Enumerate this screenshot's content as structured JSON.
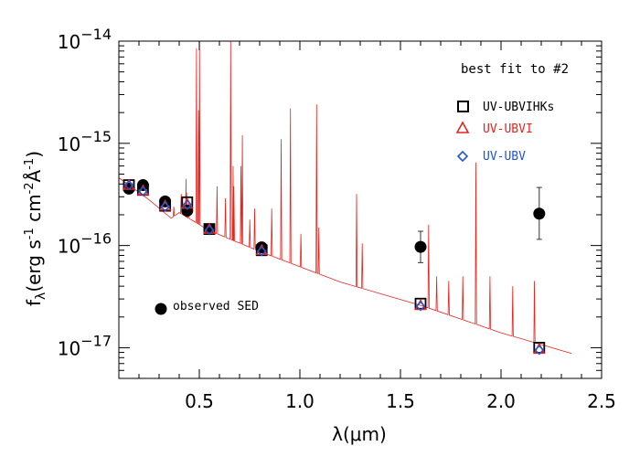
{
  "chart_data": {
    "type": "scatter",
    "xlabel_main": "λ(",
    "xlabel_mu": "μ",
    "xlabel_unit": "m)",
    "ylabel_f": "f",
    "ylabel_sub": "λ",
    "ylabel_units_a": "(erg s",
    "ylabel_exp1": "-1",
    "ylabel_units_b": " cm",
    "ylabel_exp2": "-2",
    "ylabel_angstrom": "Å",
    "ylabel_exp3": "-1",
    "ylabel_close": ")",
    "x_range": [
      0.1,
      2.5
    ],
    "y_range_log10": [
      -17.3,
      -14.0
    ],
    "y_scale": "log",
    "x_ticks": [
      {
        "value": 0.5,
        "label": "0.5"
      },
      {
        "value": 1.0,
        "label": "1.0"
      },
      {
        "value": 1.5,
        "label": "1.5"
      },
      {
        "value": 2.0,
        "label": "2.0"
      },
      {
        "value": 2.5,
        "label": "2.5"
      }
    ],
    "y_ticks": [
      {
        "exp": -14,
        "base": "10",
        "sup": "−14"
      },
      {
        "exp": -15,
        "base": "10",
        "sup": "−15"
      },
      {
        "exp": -16,
        "base": "10",
        "sup": "−16"
      },
      {
        "exp": -17,
        "base": "10",
        "sup": "−17"
      }
    ],
    "annotation": "best fit to #2",
    "observed_label": "observed SED",
    "observed": [
      {
        "x": 0.15,
        "y": 3.6e-16
      },
      {
        "x": 0.22,
        "y": 3.9e-16
      },
      {
        "x": 0.33,
        "y": 2.7e-16
      },
      {
        "x": 0.44,
        "y": 2.2e-16
      },
      {
        "x": 0.55,
        "y": 1.45e-16
      },
      {
        "x": 0.81,
        "y": 9.6e-17
      },
      {
        "x": 1.6,
        "y": 9.7e-17,
        "err_low": 6.8e-17,
        "err_high": 1.38e-16
      },
      {
        "x": 2.19,
        "y": 2.05e-16,
        "err_low": 1.15e-16,
        "err_high": 3.7e-16
      }
    ],
    "series": [
      {
        "name": "UV-UBVIHKs",
        "color": "#000000",
        "marker": "square",
        "points": [
          {
            "x": 0.15,
            "y": 3.9e-16
          },
          {
            "x": 0.22,
            "y": 3.5e-16
          },
          {
            "x": 0.33,
            "y": 2.45e-16
          },
          {
            "x": 0.44,
            "y": 2.65e-16
          },
          {
            "x": 0.55,
            "y": 1.45e-16
          },
          {
            "x": 0.81,
            "y": 9e-17
          },
          {
            "x": 1.6,
            "y": 2.7e-17
          },
          {
            "x": 2.19,
            "y": 1e-17
          }
        ]
      },
      {
        "name": "UV-UBVI",
        "color": "#e8231f",
        "marker": "triangle",
        "points": [
          {
            "x": 0.15,
            "y": 3.9e-16
          },
          {
            "x": 0.22,
            "y": 3.45e-16
          },
          {
            "x": 0.33,
            "y": 2.45e-16
          },
          {
            "x": 0.44,
            "y": 2.55e-16
          },
          {
            "x": 0.55,
            "y": 1.45e-16
          },
          {
            "x": 0.81,
            "y": 9e-17
          },
          {
            "x": 1.6,
            "y": 2.6e-17
          },
          {
            "x": 2.19,
            "y": 9.7e-18
          }
        ]
      },
      {
        "name": "UV-UBV",
        "color": "#2255d5",
        "marker": "diamond",
        "points": [
          {
            "x": 0.15,
            "y": 3.9e-16
          },
          {
            "x": 0.22,
            "y": 3.4e-16
          },
          {
            "x": 0.33,
            "y": 2.4e-16
          },
          {
            "x": 0.44,
            "y": 2.5e-16
          },
          {
            "x": 0.55,
            "y": 1.42e-16
          },
          {
            "x": 0.81,
            "y": 8.8e-17
          },
          {
            "x": 1.6,
            "y": 2.55e-17
          },
          {
            "x": 2.19,
            "y": 9.5e-18
          }
        ]
      }
    ],
    "model_spectrum": {
      "color": "#e8231f",
      "continuum": [
        {
          "x": 0.1,
          "y": 4.6e-16
        },
        {
          "x": 0.15,
          "y": 3.9e-16
        },
        {
          "x": 0.25,
          "y": 2.8e-16
        },
        {
          "x": 0.36,
          "y": 1.85e-16
        },
        {
          "x": 0.4,
          "y": 2.1e-16
        },
        {
          "x": 0.55,
          "y": 1.4e-16
        },
        {
          "x": 0.81,
          "y": 8.6e-17
        },
        {
          "x": 1.2,
          "y": 4.4e-17
        },
        {
          "x": 1.6,
          "y": 2.6e-17
        },
        {
          "x": 2.0,
          "y": 1.4e-17
        },
        {
          "x": 2.35,
          "y": 8.8e-18
        }
      ],
      "lines": [
        {
          "x": 0.373,
          "y": 2.4e-16
        },
        {
          "x": 0.41,
          "y": 3.2e-16
        },
        {
          "x": 0.434,
          "y": 4.5e-16
        },
        {
          "x": 0.437,
          "y": 3.3e-16
        },
        {
          "x": 0.447,
          "y": 2.6e-16
        },
        {
          "x": 0.486,
          "y": 8.5e-15
        },
        {
          "x": 0.496,
          "y": 2.1e-15
        },
        {
          "x": 0.501,
          "y": 1.1e-14
        },
        {
          "x": 0.588,
          "y": 3.8e-16
        },
        {
          "x": 0.63,
          "y": 2.9e-16
        },
        {
          "x": 0.656,
          "y": 1.1e-14
        },
        {
          "x": 0.668,
          "y": 6e-16
        },
        {
          "x": 0.672,
          "y": 3.8e-16
        },
        {
          "x": 0.707,
          "y": 6e-16
        },
        {
          "x": 0.714,
          "y": 1.2e-15
        },
        {
          "x": 0.751,
          "y": 1.8e-16
        },
        {
          "x": 0.775,
          "y": 2.3e-16
        },
        {
          "x": 0.86,
          "y": 2.3e-16
        },
        {
          "x": 0.907,
          "y": 1.1e-15
        },
        {
          "x": 0.953,
          "y": 2.2e-15
        },
        {
          "x": 1.005,
          "y": 1.3e-16
        },
        {
          "x": 1.083,
          "y": 2.4e-15
        },
        {
          "x": 1.094,
          "y": 1.5e-16
        },
        {
          "x": 1.282,
          "y": 3.2e-16
        },
        {
          "x": 1.31,
          "y": 1.05e-16
        },
        {
          "x": 1.64,
          "y": 1.6e-16
        },
        {
          "x": 1.68,
          "y": 5e-17
        },
        {
          "x": 1.74,
          "y": 4.5e-17
        },
        {
          "x": 1.81,
          "y": 5e-17
        },
        {
          "x": 1.875,
          "y": 6.5e-16
        },
        {
          "x": 1.945,
          "y": 5e-17
        },
        {
          "x": 2.058,
          "y": 4e-17
        },
        {
          "x": 2.166,
          "y": 4.5e-17
        }
      ]
    }
  }
}
